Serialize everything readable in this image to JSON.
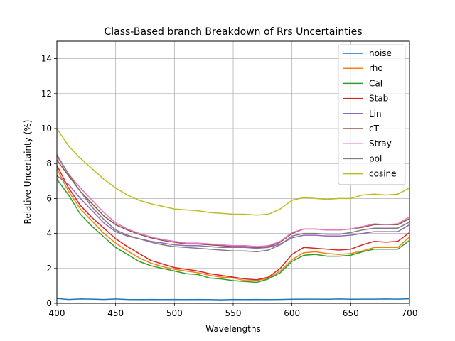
{
  "chart_data": {
    "type": "line",
    "title": "Class-Based branch Breakdown of Rrs Uncertainties",
    "xlabel": "Wavelengths",
    "ylabel": "Relative Uncertainty (%)",
    "xlim": [
      400,
      700
    ],
    "ylim": [
      0,
      15
    ],
    "xticks": [
      400,
      450,
      500,
      550,
      600,
      650,
      700
    ],
    "yticks": [
      0,
      2,
      4,
      6,
      8,
      10,
      12,
      14
    ],
    "grid": true,
    "legend_position": "top-right",
    "x": [
      400,
      410,
      420,
      430,
      440,
      450,
      460,
      470,
      480,
      490,
      500,
      510,
      520,
      530,
      540,
      550,
      560,
      570,
      580,
      590,
      600,
      610,
      620,
      630,
      640,
      650,
      660,
      670,
      680,
      690,
      700
    ],
    "series": [
      {
        "name": "noise",
        "color": "#1f77b4",
        "values": [
          0.28,
          0.22,
          0.25,
          0.24,
          0.22,
          0.25,
          0.22,
          0.21,
          0.22,
          0.21,
          0.22,
          0.21,
          0.22,
          0.21,
          0.2,
          0.22,
          0.21,
          0.22,
          0.21,
          0.22,
          0.23,
          0.24,
          0.24,
          0.23,
          0.25,
          0.23,
          0.24,
          0.24,
          0.25,
          0.24,
          0.26
        ]
      },
      {
        "name": "rho",
        "color": "#ff7f0e",
        "values": [
          7.7,
          6.4,
          5.4,
          4.7,
          4.0,
          3.45,
          3.0,
          2.6,
          2.3,
          2.1,
          1.95,
          1.85,
          1.75,
          1.6,
          1.5,
          1.45,
          1.3,
          1.3,
          1.45,
          1.85,
          2.5,
          2.9,
          2.95,
          2.85,
          2.8,
          2.85,
          3.0,
          3.2,
          3.2,
          3.2,
          3.8
        ]
      },
      {
        "name": "Cal",
        "color": "#2ca02c",
        "values": [
          7.1,
          6.2,
          5.1,
          4.4,
          3.8,
          3.2,
          2.8,
          2.4,
          2.15,
          2.0,
          1.85,
          1.7,
          1.65,
          1.45,
          1.4,
          1.3,
          1.25,
          1.2,
          1.4,
          1.75,
          2.4,
          2.75,
          2.8,
          2.7,
          2.7,
          2.75,
          2.95,
          3.1,
          3.1,
          3.1,
          3.6
        ]
      },
      {
        "name": "Stab",
        "color": "#d62728",
        "values": [
          7.9,
          6.6,
          5.6,
          4.9,
          4.3,
          3.7,
          3.25,
          2.85,
          2.45,
          2.25,
          2.05,
          1.95,
          1.85,
          1.7,
          1.6,
          1.5,
          1.4,
          1.35,
          1.5,
          2.0,
          2.8,
          3.2,
          3.15,
          3.1,
          3.05,
          3.1,
          3.35,
          3.55,
          3.5,
          3.55,
          4.05
        ]
      },
      {
        "name": "Lin",
        "color": "#9467bd",
        "values": [
          7.3,
          6.8,
          6.0,
          5.3,
          4.6,
          4.1,
          3.85,
          3.7,
          3.55,
          3.45,
          3.35,
          3.3,
          3.3,
          3.25,
          3.2,
          3.2,
          3.2,
          3.15,
          3.2,
          3.4,
          3.75,
          3.9,
          3.9,
          3.85,
          3.85,
          3.9,
          4.0,
          4.1,
          4.1,
          4.1,
          4.5
        ]
      },
      {
        "name": "cT",
        "color": "#8c564b",
        "values": [
          8.2,
          7.3,
          6.4,
          5.7,
          5.0,
          4.5,
          4.2,
          3.95,
          3.75,
          3.6,
          3.5,
          3.4,
          3.4,
          3.35,
          3.3,
          3.25,
          3.25,
          3.2,
          3.25,
          3.5,
          4.0,
          4.25,
          4.25,
          4.2,
          4.2,
          4.25,
          4.35,
          4.5,
          4.5,
          4.5,
          4.85
        ]
      },
      {
        "name": "Stray",
        "color": "#e377c2",
        "values": [
          8.4,
          7.4,
          6.6,
          5.9,
          5.2,
          4.6,
          4.25,
          4.0,
          3.8,
          3.65,
          3.55,
          3.45,
          3.45,
          3.4,
          3.35,
          3.3,
          3.3,
          3.25,
          3.3,
          3.55,
          4.05,
          4.25,
          4.25,
          4.2,
          4.2,
          4.25,
          4.4,
          4.55,
          4.5,
          4.55,
          4.95
        ]
      },
      {
        "name": "pol",
        "color": "#7f7f7f",
        "values": [
          8.5,
          7.4,
          6.4,
          5.5,
          4.8,
          4.2,
          3.9,
          3.7,
          3.5,
          3.35,
          3.25,
          3.2,
          3.15,
          3.1,
          3.05,
          3.0,
          3.0,
          2.95,
          3.05,
          3.35,
          3.85,
          4.0,
          4.0,
          3.95,
          3.95,
          4.05,
          4.2,
          4.3,
          4.3,
          4.3,
          4.65
        ]
      },
      {
        "name": "cosine",
        "color": "#bcbd22",
        "values": [
          10.0,
          9.0,
          8.3,
          7.7,
          7.1,
          6.6,
          6.2,
          5.9,
          5.7,
          5.55,
          5.4,
          5.35,
          5.3,
          5.2,
          5.15,
          5.1,
          5.1,
          5.05,
          5.1,
          5.4,
          5.9,
          6.05,
          6.0,
          5.95,
          6.0,
          6.0,
          6.2,
          6.25,
          6.2,
          6.25,
          6.6
        ]
      }
    ]
  }
}
